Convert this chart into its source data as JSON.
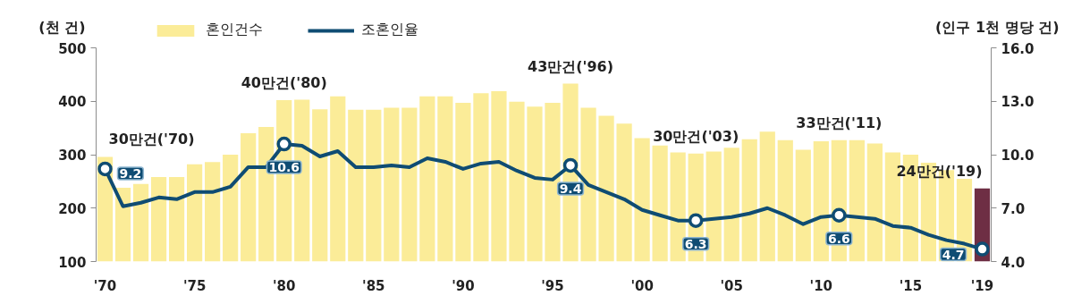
{
  "chart_data": {
    "type": "bar",
    "ylabel": "(천 건)",
    "y2label": "(인구 1천 명당 건)",
    "x": [
      1970,
      1971,
      1972,
      1973,
      1974,
      1975,
      1976,
      1977,
      1978,
      1979,
      1980,
      1981,
      1982,
      1983,
      1984,
      1985,
      1986,
      1987,
      1988,
      1989,
      1990,
      1991,
      1992,
      1993,
      1994,
      1995,
      1996,
      1997,
      1998,
      1999,
      2000,
      2001,
      2002,
      2003,
      2004,
      2005,
      2006,
      2007,
      2008,
      2009,
      2010,
      2011,
      2012,
      2013,
      2014,
      2015,
      2016,
      2017,
      2018,
      2019
    ],
    "series": [
      {
        "name": "혼인건수",
        "colors": [
          "#fbec98",
          "#fbec98",
          "#fbec98",
          "#fbec98",
          "#fbec98",
          "#fbec98",
          "#fbec98",
          "#fbec98",
          "#fbec98",
          "#fbec98",
          "#fbec98",
          "#fbec98",
          "#fbec98",
          "#fbec98",
          "#fbec98",
          "#fbec98",
          "#fbec98",
          "#fbec98",
          "#fbec98",
          "#fbec98",
          "#fbec98",
          "#fbec98",
          "#fbec98",
          "#fbec98",
          "#fbec98",
          "#fbec98",
          "#fbec98",
          "#fbec98",
          "#fbec98",
          "#fbec98",
          "#fbec98",
          "#fbec98",
          "#fbec98",
          "#fbec98",
          "#fbec98",
          "#fbec98",
          "#fbec98",
          "#fbec98",
          "#fbec98",
          "#fbec98",
          "#fbec98",
          "#fbec98",
          "#fbec98",
          "#fbec98",
          "#fbec98",
          "#fbec98",
          "#fbec98",
          "#fbec98",
          "#fbec98",
          "#6e2e44"
        ],
        "values": [
          296,
          238,
          245,
          258,
          258,
          282,
          286,
          300,
          340,
          352,
          402,
          403,
          385,
          409,
          384,
          384,
          388,
          388,
          409,
          409,
          397,
          415,
          419,
          399,
          390,
          397,
          433,
          388,
          373,
          358,
          331,
          317,
          304,
          302,
          306,
          313,
          329,
          343,
          327,
          309,
          325,
          327,
          327,
          321,
          304,
          300,
          285,
          271,
          255,
          237
        ]
      },
      {
        "type": "line",
        "name": "조혼인율",
        "color": "#0f4c73",
        "axis": "y2",
        "line_style": "solid",
        "values": [
          9.2,
          7.1,
          7.3,
          7.6,
          7.5,
          7.9,
          7.9,
          8.2,
          9.3,
          9.3,
          10.6,
          10.5,
          9.9,
          10.2,
          9.3,
          9.3,
          9.4,
          9.3,
          9.8,
          9.6,
          9.2,
          9.5,
          9.6,
          9.1,
          8.7,
          8.6,
          9.4,
          8.3,
          7.9,
          7.5,
          6.9,
          6.6,
          6.3,
          6.3,
          6.4,
          6.5,
          6.7,
          7.0,
          6.6,
          6.1,
          6.5,
          6.6,
          6.5,
          6.4,
          6.0,
          5.9,
          5.5,
          5.2,
          5.0,
          4.7
        ]
      },
      {
        "type": "scatter",
        "color": "#0f4c73",
        "axis": "y2",
        "marker": "circle",
        "x": [
          1970,
          1980,
          1996,
          2003,
          2011,
          2019
        ],
        "values": [
          9.2,
          10.6,
          9.4,
          6.3,
          6.6,
          4.7
        ],
        "value_labels": [
          "9.2",
          "10.6",
          "9.4",
          "6.3",
          "6.6",
          "4.7"
        ]
      }
    ],
    "xlim": [
      1969.5,
      2019.5
    ],
    "xticks": [
      {
        "value": 1970,
        "label": "'70"
      },
      {
        "value": 1975,
        "label": "'75"
      },
      {
        "value": 1980,
        "label": "'80"
      },
      {
        "value": 1985,
        "label": "'85"
      },
      {
        "value": 1990,
        "label": "'90"
      },
      {
        "value": 1995,
        "label": "'95"
      },
      {
        "value": 2000,
        "label": "'00"
      },
      {
        "value": 2005,
        "label": "'05"
      },
      {
        "value": 2010,
        "label": "'10"
      },
      {
        "value": 2015,
        "label": "'15"
      },
      {
        "value": 2019,
        "label": "'19"
      }
    ],
    "ylim": [
      100,
      500
    ],
    "yticks": [
      100,
      200,
      300,
      400,
      500
    ],
    "y2lim": [
      4,
      16
    ],
    "y2ticks": [
      {
        "value": 4,
        "label": "4.0"
      },
      {
        "value": 7,
        "label": "7.0"
      },
      {
        "value": 10,
        "label": "10.0"
      },
      {
        "value": 13,
        "label": "13.0"
      },
      {
        "value": 16,
        "label": "16.0"
      }
    ],
    "annotations": [
      {
        "text": "30만건('70)",
        "x": 1970,
        "y": 296
      },
      {
        "text": "40만건('80)",
        "x": 1980,
        "y": 402
      },
      {
        "text": "43만건('96)",
        "x": 1996,
        "y": 433
      },
      {
        "text": "30만건('03)",
        "x": 2003,
        "y": 302
      },
      {
        "text": "33만건('11)",
        "x": 2011,
        "y": 327
      },
      {
        "text": "24만건('19)",
        "x": 2019,
        "y": 237
      }
    ],
    "legend": "top"
  }
}
